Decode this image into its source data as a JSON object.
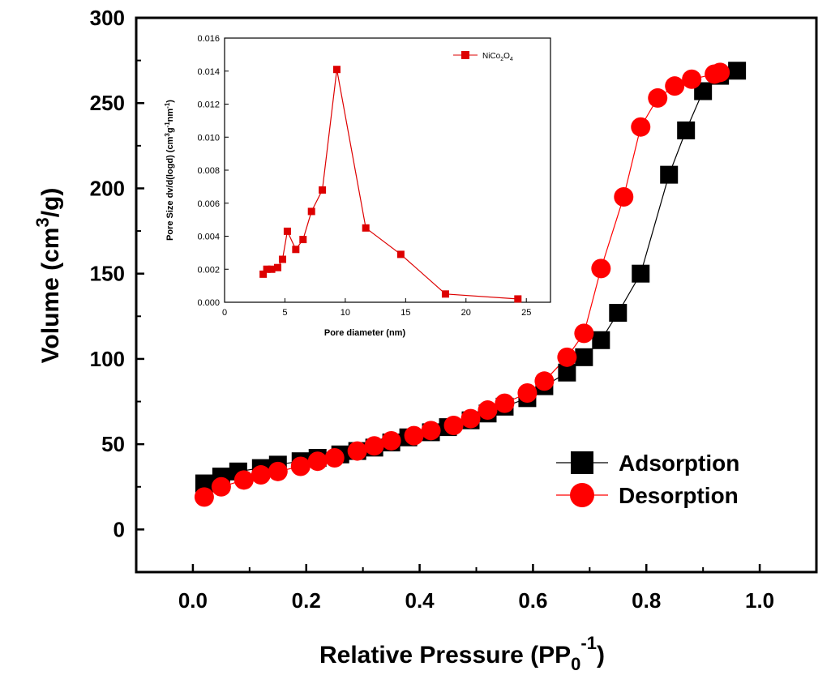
{
  "chart_data": [
    {
      "type": "scatter",
      "xlabel": "Relative Pressure (PP",
      "xlabel_sub": "0",
      "xlabel_sup": "-1",
      "xlabel_end": ")",
      "ylabel": "Volume (cm",
      "ylabel_sup": "3",
      "ylabel_end": "/g)",
      "xlim": [
        -0.1,
        1.1
      ],
      "ylim": [
        -25,
        300
      ],
      "xticks": [
        0.0,
        0.2,
        0.4,
        0.6,
        0.8,
        1.0
      ],
      "xtick_labels": [
        "0.0",
        "0.2",
        "0.4",
        "0.6",
        "0.8",
        "1.0"
      ],
      "yticks": [
        0,
        50,
        100,
        150,
        200,
        250,
        300
      ],
      "ytick_labels": [
        "0",
        "50",
        "100",
        "150",
        "200",
        "250",
        "300"
      ],
      "legend_position": "bottom-right",
      "grid": false,
      "series": [
        {
          "name": "Adsorption",
          "marker": "square",
          "color": "#000000",
          "x": [
            0.02,
            0.05,
            0.08,
            0.12,
            0.15,
            0.19,
            0.22,
            0.26,
            0.29,
            0.32,
            0.35,
            0.38,
            0.42,
            0.45,
            0.49,
            0.52,
            0.55,
            0.59,
            0.62,
            0.66,
            0.69,
            0.72,
            0.75,
            0.79,
            0.84,
            0.87,
            0.9,
            0.93,
            0.96
          ],
          "y": [
            27,
            31,
            34,
            36,
            38,
            40,
            42,
            44,
            46,
            48,
            51,
            54,
            57,
            60,
            64,
            68,
            72,
            77,
            84,
            92,
            101,
            111,
            127,
            150,
            208,
            234,
            257,
            266,
            269
          ]
        },
        {
          "name": "Desorption",
          "marker": "circle",
          "color": "#ff0000",
          "x": [
            0.02,
            0.05,
            0.09,
            0.12,
            0.15,
            0.19,
            0.22,
            0.25,
            0.29,
            0.32,
            0.35,
            0.39,
            0.42,
            0.46,
            0.49,
            0.52,
            0.55,
            0.59,
            0.62,
            0.66,
            0.69,
            0.72,
            0.76,
            0.79,
            0.82,
            0.85,
            0.88,
            0.92,
            0.93
          ],
          "y": [
            19,
            25,
            29,
            32,
            34,
            37,
            40,
            42,
            46,
            49,
            52,
            55,
            58,
            61,
            65,
            70,
            74,
            80,
            87,
            101,
            115,
            153,
            195,
            236,
            253,
            260,
            264,
            267,
            268
          ]
        }
      ]
    },
    {
      "type": "line",
      "role": "inset",
      "xlabel": "Pore diameter (nm)",
      "ylabel": "Pore Size dv/d(logd) (cm",
      "ylabel_sup1": "3",
      "ylabel_mid": "g",
      "ylabel_sup2": "-1",
      "ylabel_mid2": "nm",
      "ylabel_sup3": "-1",
      "ylabel_end": ")",
      "xlim": [
        0,
        27
      ],
      "ylim": [
        0,
        0.016
      ],
      "xticks": [
        0,
        5,
        10,
        15,
        20,
        25
      ],
      "xtick_labels": [
        "0",
        "5",
        "10",
        "15",
        "20",
        "25"
      ],
      "yticks": [
        0,
        0.002,
        0.004,
        0.006,
        0.008,
        0.01,
        0.012,
        0.014,
        0.016
      ],
      "ytick_labels": [
        "0.000",
        "0.002",
        "0.004",
        "0.006",
        "0.008",
        "0.010",
        "0.012",
        "0.014",
        "0.016"
      ],
      "legend_position": "top-right",
      "series": [
        {
          "name_parts": [
            "NiCo",
            "2",
            "O",
            "4"
          ],
          "marker": "square",
          "color": "#dd0000",
          "x": [
            3.2,
            3.5,
            3.9,
            4.4,
            4.8,
            5.2,
            5.9,
            6.5,
            7.2,
            8.1,
            9.3,
            11.7,
            14.6,
            18.3,
            24.3
          ],
          "y": [
            0.0017,
            0.002,
            0.002,
            0.0021,
            0.0026,
            0.0043,
            0.0032,
            0.0038,
            0.0055,
            0.0068,
            0.0141,
            0.0045,
            0.0029,
            0.0005,
            0.0002
          ]
        }
      ]
    }
  ]
}
